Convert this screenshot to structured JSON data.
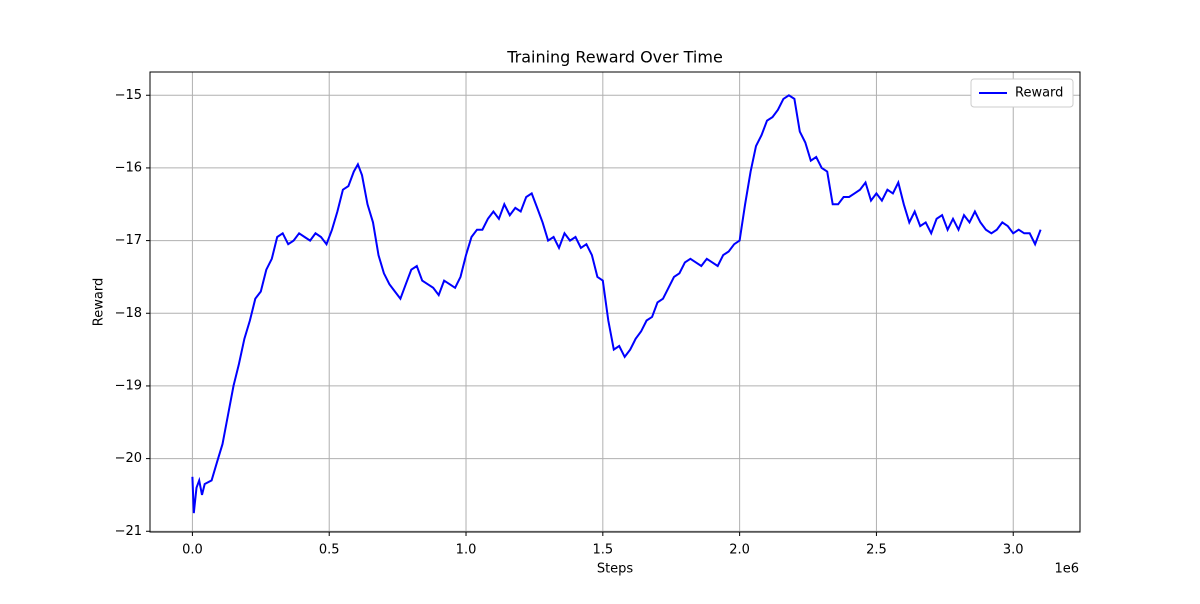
{
  "chart_data": {
    "type": "line",
    "title": "Training Reward Over Time",
    "xlabel": "Steps",
    "ylabel": "Reward",
    "x_offset_label": "1e6",
    "x": [
      0,
      5000,
      15000,
      25000,
      35000,
      45000,
      70000,
      90000,
      110000,
      130000,
      150000,
      170000,
      190000,
      210000,
      230000,
      250000,
      270000,
      290000,
      310000,
      330000,
      350000,
      370000,
      390000,
      410000,
      430000,
      450000,
      470000,
      490000,
      510000,
      530000,
      550000,
      570000,
      590000,
      605000,
      620000,
      640000,
      660000,
      680000,
      700000,
      720000,
      740000,
      760000,
      780000,
      800000,
      820000,
      840000,
      860000,
      880000,
      900000,
      920000,
      940000,
      960000,
      980000,
      1000000,
      1020000,
      1040000,
      1060000,
      1080000,
      1100000,
      1120000,
      1140000,
      1160000,
      1180000,
      1200000,
      1220000,
      1240000,
      1260000,
      1280000,
      1300000,
      1320000,
      1340000,
      1360000,
      1380000,
      1400000,
      1420000,
      1440000,
      1460000,
      1480000,
      1500000,
      1520000,
      1540000,
      1560000,
      1580000,
      1600000,
      1620000,
      1640000,
      1660000,
      1680000,
      1700000,
      1720000,
      1740000,
      1760000,
      1780000,
      1800000,
      1820000,
      1840000,
      1860000,
      1880000,
      1900000,
      1920000,
      1940000,
      1960000,
      1980000,
      2000000,
      2020000,
      2040000,
      2060000,
      2080000,
      2100000,
      2120000,
      2140000,
      2160000,
      2180000,
      2200000,
      2220000,
      2240000,
      2260000,
      2280000,
      2300000,
      2320000,
      2340000,
      2360000,
      2380000,
      2400000,
      2420000,
      2440000,
      2460000,
      2480000,
      2500000,
      2520000,
      2540000,
      2560000,
      2580000,
      2600000,
      2620000,
      2640000,
      2660000,
      2680000,
      2700000,
      2720000,
      2740000,
      2760000,
      2780000,
      2800000,
      2820000,
      2840000,
      2860000,
      2880000,
      2900000,
      2920000,
      2940000,
      2960000,
      2980000,
      3000000,
      3020000,
      3040000,
      3060000,
      3080000,
      3100000
    ],
    "series": [
      {
        "name": "Reward",
        "color": "#0000ff",
        "values": [
          -20.25,
          -20.75,
          -20.4,
          -20.3,
          -20.5,
          -20.35,
          -20.3,
          -20.05,
          -19.8,
          -19.4,
          -19.0,
          -18.7,
          -18.35,
          -18.1,
          -17.8,
          -17.7,
          -17.4,
          -17.25,
          -16.95,
          -16.9,
          -17.05,
          -17.0,
          -16.9,
          -16.95,
          -17.0,
          -16.9,
          -16.95,
          -17.05,
          -16.85,
          -16.6,
          -16.3,
          -16.25,
          -16.05,
          -15.95,
          -16.1,
          -16.5,
          -16.75,
          -17.2,
          -17.45,
          -17.6,
          -17.7,
          -17.8,
          -17.6,
          -17.4,
          -17.35,
          -17.55,
          -17.6,
          -17.65,
          -17.75,
          -17.55,
          -17.6,
          -17.65,
          -17.5,
          -17.2,
          -16.95,
          -16.85,
          -16.85,
          -16.7,
          -16.6,
          -16.7,
          -16.5,
          -16.65,
          -16.55,
          -16.6,
          -16.4,
          -16.35,
          -16.55,
          -16.75,
          -17.0,
          -16.95,
          -17.1,
          -16.9,
          -17.0,
          -16.95,
          -17.1,
          -17.05,
          -17.2,
          -17.5,
          -17.55,
          -18.1,
          -18.5,
          -18.45,
          -18.6,
          -18.5,
          -18.35,
          -18.25,
          -18.1,
          -18.05,
          -17.85,
          -17.8,
          -17.65,
          -17.5,
          -17.45,
          -17.3,
          -17.25,
          -17.3,
          -17.35,
          -17.25,
          -17.3,
          -17.35,
          -17.2,
          -17.15,
          -17.05,
          -17.0,
          -16.5,
          -16.05,
          -15.7,
          -15.55,
          -15.35,
          -15.3,
          -15.2,
          -15.05,
          -15.0,
          -15.05,
          -15.5,
          -15.65,
          -15.9,
          -15.85,
          -16.0,
          -16.05,
          -16.5,
          -16.5,
          -16.4,
          -16.4,
          -16.35,
          -16.3,
          -16.2,
          -16.45,
          -16.35,
          -16.45,
          -16.3,
          -16.35,
          -16.2,
          -16.5,
          -16.75,
          -16.6,
          -16.8,
          -16.75,
          -16.9,
          -16.7,
          -16.65,
          -16.85,
          -16.7,
          -16.85,
          -16.65,
          -16.75,
          -16.6,
          -16.75,
          -16.85,
          -16.9,
          -16.85,
          -16.75,
          -16.8,
          -16.9,
          -16.85,
          -16.9,
          -16.9,
          -17.05,
          -16.85
        ]
      }
    ],
    "xlim": [
      -155000,
      3244000
    ],
    "xticks": [
      {
        "value": 0,
        "label": "0.0"
      },
      {
        "value": 500000,
        "label": "0.5"
      },
      {
        "value": 1000000,
        "label": "1.0"
      },
      {
        "value": 1500000,
        "label": "1.5"
      },
      {
        "value": 2000000,
        "label": "2.0"
      },
      {
        "value": 2500000,
        "label": "2.5"
      },
      {
        "value": 3000000,
        "label": "3.0"
      }
    ],
    "ylim": [
      -21.01,
      -14.68
    ],
    "yticks": [
      {
        "value": -21,
        "label": "−21"
      },
      {
        "value": -20,
        "label": "−20"
      },
      {
        "value": -19,
        "label": "−19"
      },
      {
        "value": -18,
        "label": "−18"
      },
      {
        "value": -17,
        "label": "−17"
      },
      {
        "value": -16,
        "label": "−16"
      },
      {
        "value": -15,
        "label": "−15"
      }
    ],
    "grid": true,
    "legend": "upper right"
  }
}
